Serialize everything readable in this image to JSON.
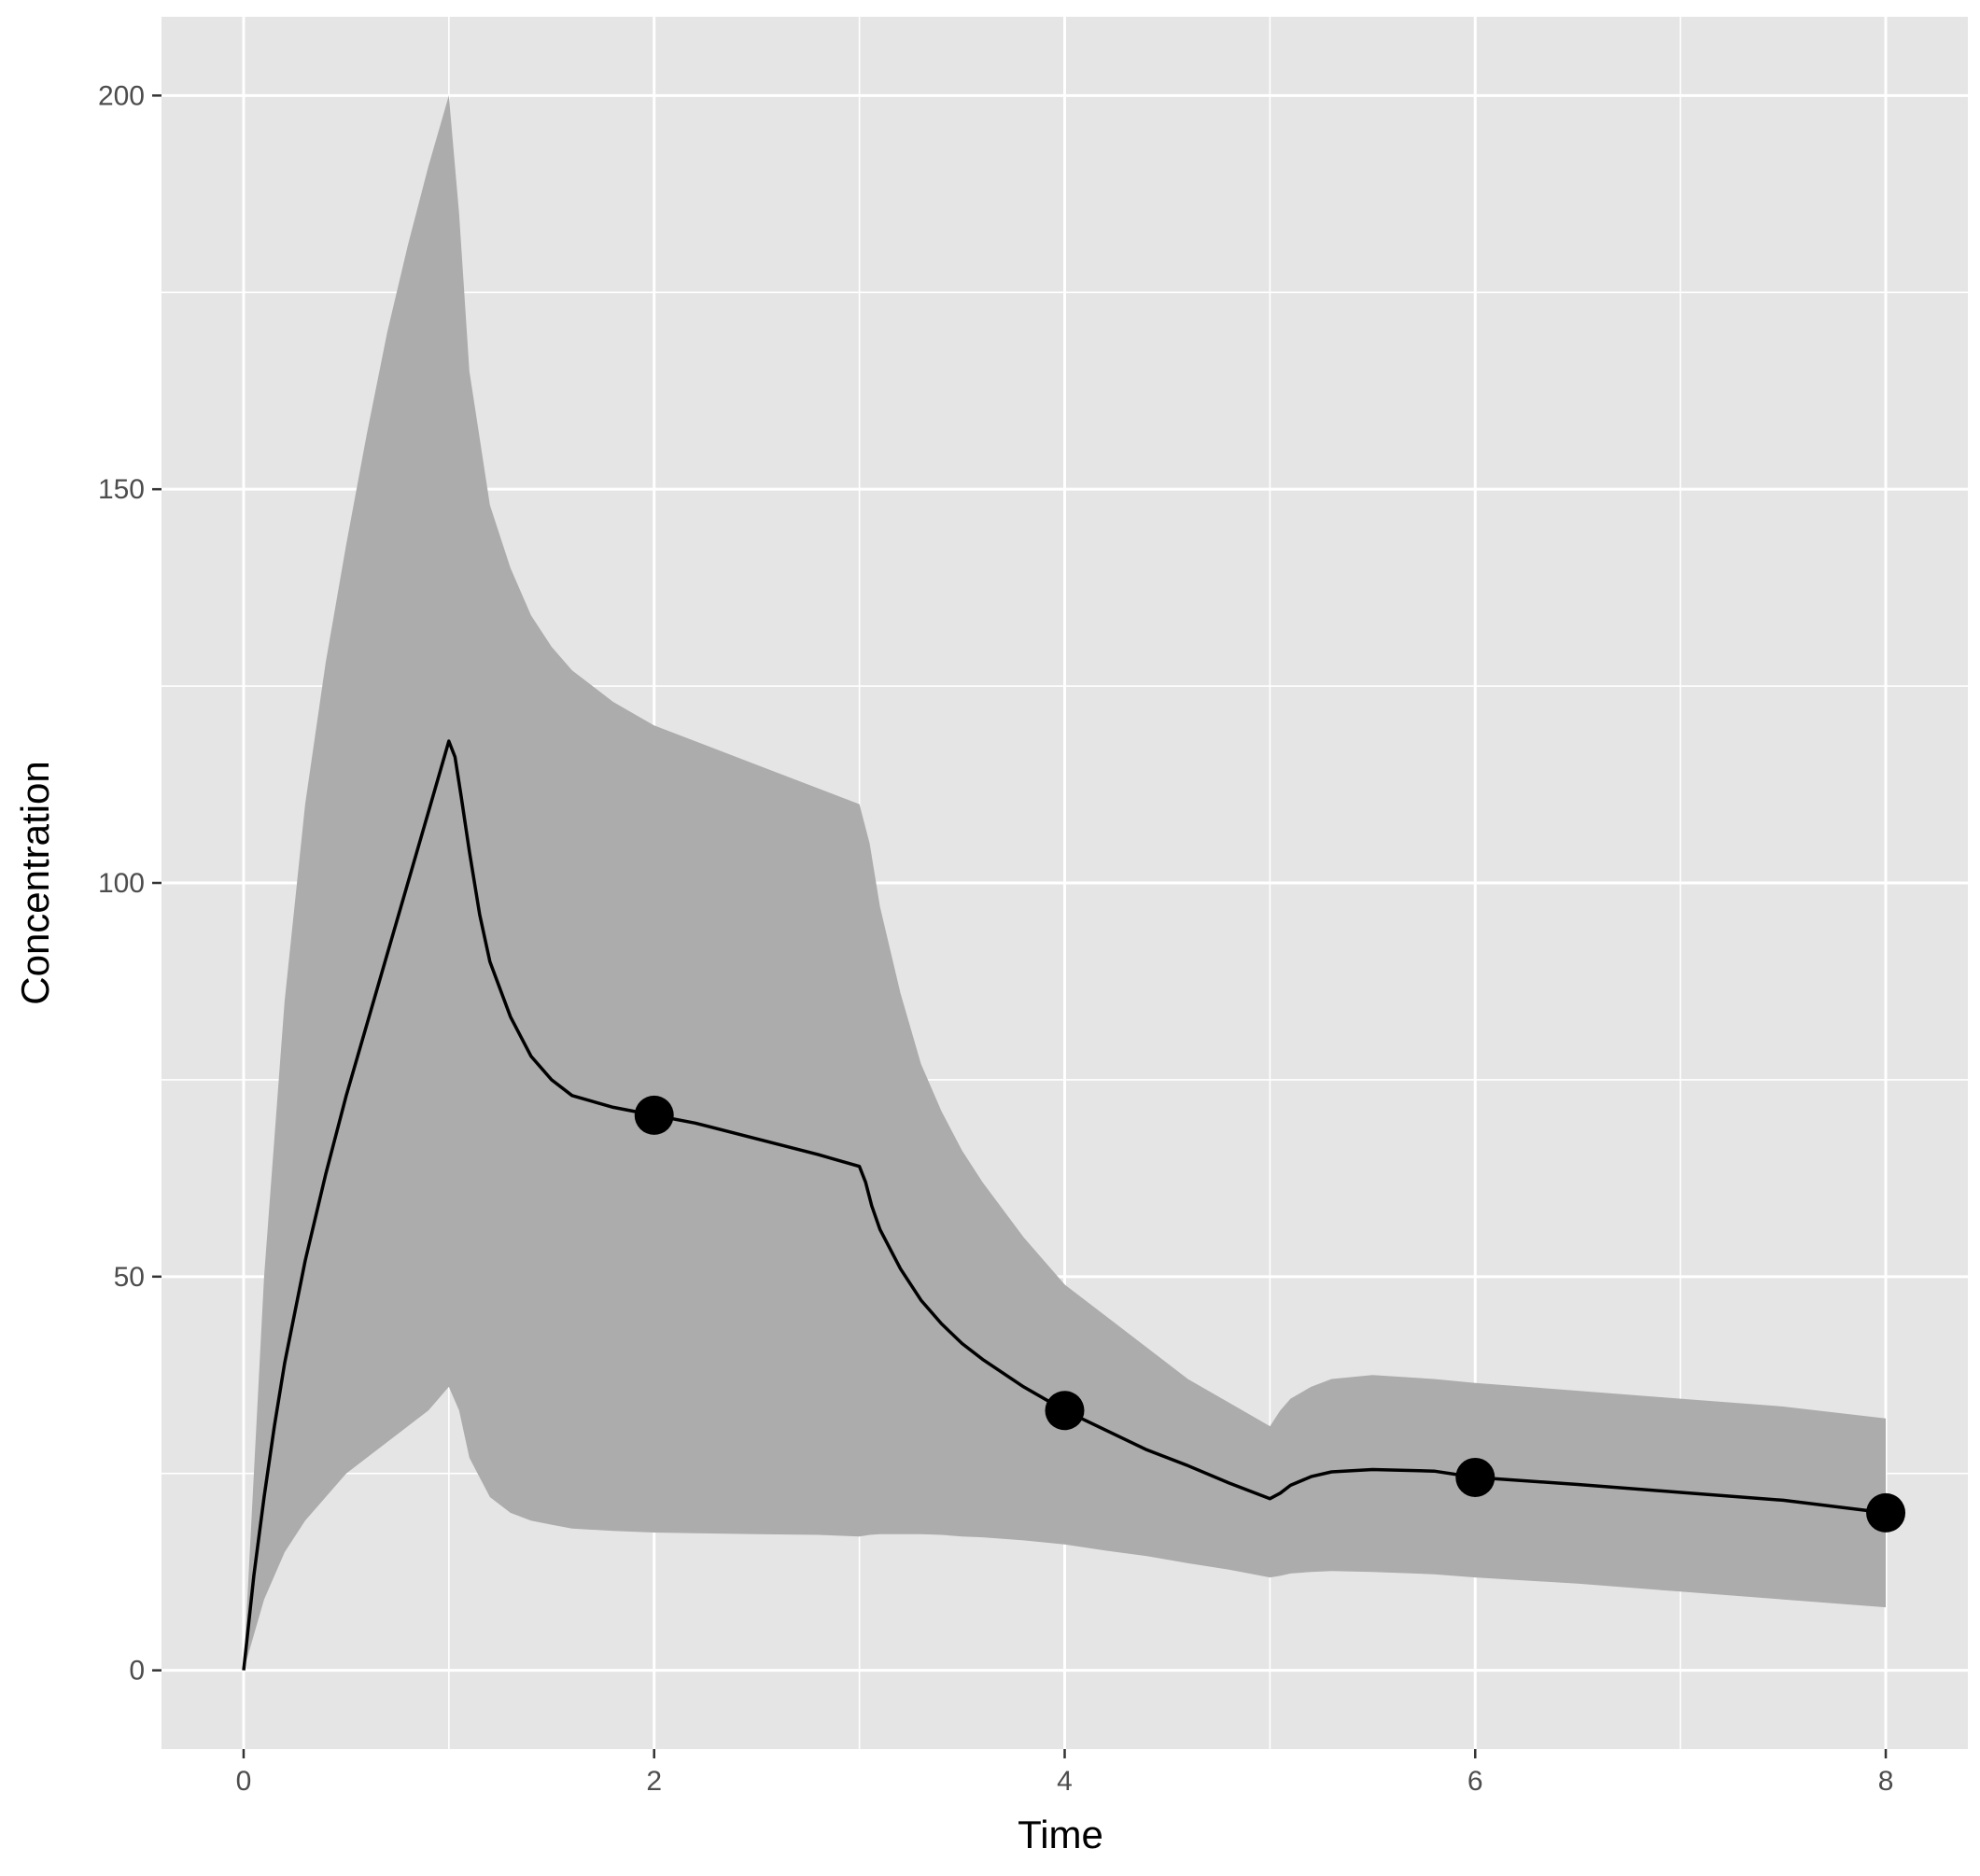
{
  "chart_data": {
    "type": "line",
    "title": "",
    "xlabel": "Time",
    "ylabel": "Concentration",
    "xlim": [
      -0.4,
      8.4
    ],
    "ylim": [
      -10,
      210
    ],
    "x_ticks": [
      0,
      2,
      4,
      6,
      8
    ],
    "y_ticks": [
      0,
      50,
      100,
      150,
      200
    ],
    "grid": true,
    "legend": "none",
    "colors": {
      "panel_background": "#e5e5e5",
      "grid": "#ffffff",
      "ribbon": "#acacac",
      "line": "#000000",
      "points": "#000000"
    },
    "series": [
      {
        "kind": "ribbon",
        "x": [
          0,
          0.1,
          0.2,
          0.3,
          0.4,
          0.5,
          0.6,
          0.7,
          0.8,
          0.9,
          1.0,
          1.05,
          1.1,
          1.2,
          1.3,
          1.4,
          1.5,
          1.6,
          1.8,
          2.0,
          2.2,
          2.5,
          2.8,
          3.0,
          3.05,
          3.1,
          3.2,
          3.3,
          3.4,
          3.5,
          3.6,
          3.8,
          4.0,
          4.2,
          4.4,
          4.6,
          4.8,
          5.0,
          5.05,
          5.1,
          5.2,
          5.3,
          5.5,
          5.8,
          6.0,
          6.5,
          7.0,
          7.5,
          8.0
        ],
        "lower": [
          0,
          9,
          15,
          19,
          22,
          25,
          27,
          29,
          31,
          33,
          36,
          33,
          27,
          22,
          20,
          19,
          18.5,
          18,
          17.7,
          17.5,
          17.4,
          17.3,
          17.2,
          17,
          17.2,
          17.3,
          17.3,
          17.3,
          17.2,
          17,
          16.9,
          16.5,
          16,
          15.2,
          14.5,
          13.6,
          12.8,
          11.8,
          12,
          12.3,
          12.5,
          12.6,
          12.5,
          12.2,
          11.8,
          11,
          10,
          9,
          8
        ],
        "upper": [
          0,
          50,
          85,
          110,
          128,
          143,
          157,
          170,
          181,
          191,
          200,
          185,
          165,
          148,
          140,
          134,
          130,
          127,
          123,
          120,
          118,
          115,
          112,
          110,
          105,
          97,
          86,
          77,
          71,
          66,
          62,
          55,
          49,
          45,
          41,
          37,
          34,
          31,
          33,
          34.5,
          36,
          37,
          37.5,
          37,
          36.5,
          35.5,
          34.5,
          33.5,
          32
        ]
      },
      {
        "kind": "line",
        "x": [
          0,
          0.05,
          0.1,
          0.15,
          0.2,
          0.3,
          0.4,
          0.5,
          0.6,
          0.7,
          0.8,
          0.9,
          1.0,
          1.03,
          1.06,
          1.1,
          1.15,
          1.2,
          1.3,
          1.4,
          1.5,
          1.6,
          1.8,
          2.0,
          2.2,
          2.5,
          2.8,
          3.0,
          3.03,
          3.06,
          3.1,
          3.2,
          3.3,
          3.4,
          3.5,
          3.6,
          3.8,
          4.0,
          4.2,
          4.4,
          4.6,
          4.8,
          5.0,
          5.05,
          5.1,
          5.2,
          5.3,
          5.5,
          5.8,
          6.0,
          6.5,
          7.0,
          7.5,
          8.0
        ],
        "y": [
          0,
          12,
          22,
          31,
          39,
          52,
          63,
          73,
          82,
          91,
          100,
          109,
          118,
          116,
          111,
          104,
          96,
          90,
          83,
          78,
          75,
          73,
          71.5,
          70.5,
          69.5,
          67.5,
          65.5,
          64,
          62,
          59,
          56,
          51,
          47,
          44,
          41.5,
          39.5,
          36,
          33,
          30.5,
          28,
          26,
          23.8,
          21.8,
          22.5,
          23.5,
          24.6,
          25.2,
          25.5,
          25.3,
          24.5,
          23.6,
          22.6,
          21.6,
          20
        ]
      },
      {
        "kind": "points",
        "x": [
          2,
          4,
          6,
          8
        ],
        "y": [
          70.5,
          33,
          24.5,
          20
        ]
      }
    ]
  }
}
